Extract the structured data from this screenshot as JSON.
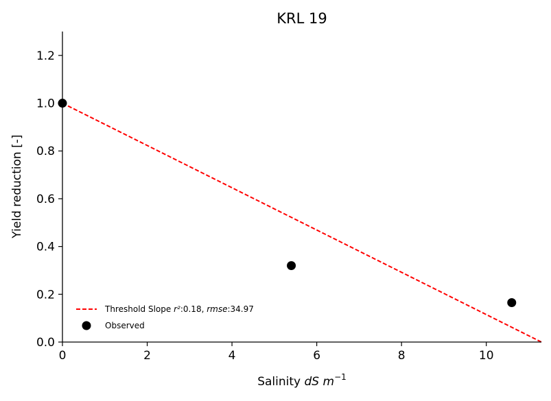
{
  "chart_data": {
    "type": "scatter",
    "title": "KRL 19",
    "xlabel": {
      "prefix": "Salinity ",
      "unit": "dS m",
      "exponent": "−1"
    },
    "ylabel": "Yield reduction [-]",
    "xlim": [
      0,
      11.3
    ],
    "ylim": [
      0,
      1.3
    ],
    "xticks": [
      0,
      2,
      4,
      6,
      8,
      10
    ],
    "xtick_labels": [
      "0",
      "2",
      "4",
      "6",
      "8",
      "10"
    ],
    "yticks": [
      0.0,
      0.2,
      0.4,
      0.6,
      0.8,
      1.0,
      1.2
    ],
    "ytick_labels": [
      "0.0",
      "0.2",
      "0.4",
      "0.6",
      "0.8",
      "1.0",
      "1.2"
    ],
    "grid": false,
    "legend_position": "lower-left",
    "series": [
      {
        "name": "Observed",
        "kind": "scatter",
        "color": "#000000",
        "x": [
          0,
          5.4,
          10.6
        ],
        "y": [
          1.0,
          0.32,
          0.165
        ]
      },
      {
        "name": "Threshold Slope",
        "kind": "line",
        "style": "dashed",
        "color": "#ff0000",
        "x": [
          0,
          11.3
        ],
        "y": [
          1.0,
          0.0
        ]
      }
    ],
    "legend": {
      "line_entry": {
        "prefix": "Threshold Slope ",
        "r2_label": "r²",
        "r2_value": ":0.18, ",
        "rmse_label": "rmse",
        "rmse_value": ":34.97"
      },
      "scatter_entry": "Observed"
    }
  }
}
